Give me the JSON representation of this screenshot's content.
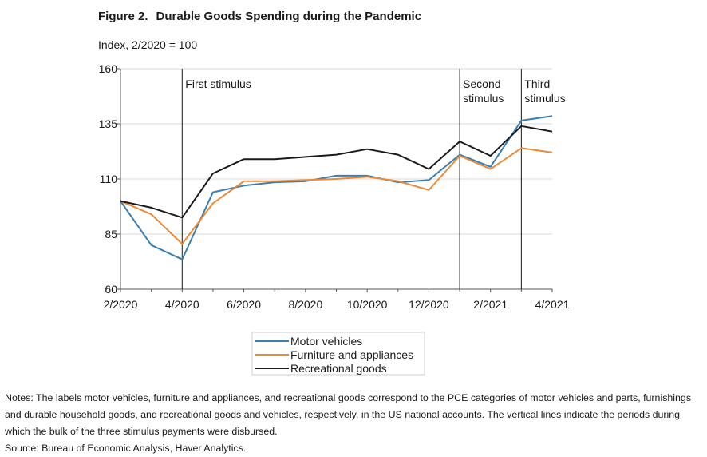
{
  "figure": {
    "number": "Figure 2.",
    "title": "Durable Goods Spending during the Pandemic",
    "ylabel": "Index, 2/2020 = 100"
  },
  "chart_data": {
    "type": "line",
    "title": "Durable Goods Spending during the Pandemic",
    "ylabel": "Index, 2/2020 = 100",
    "xlabel": "",
    "x": [
      "2/2020",
      "3/2020",
      "4/2020",
      "5/2020",
      "6/2020",
      "7/2020",
      "8/2020",
      "9/2020",
      "10/2020",
      "11/2020",
      "12/2020",
      "1/2021",
      "2/2021",
      "3/2021",
      "4/2021"
    ],
    "x_tick_labels": [
      "2/2020",
      "4/2020",
      "6/2020",
      "8/2020",
      "10/2020",
      "12/2020",
      "2/2021",
      "4/2021"
    ],
    "y_ticks": [
      60,
      85,
      110,
      135,
      160
    ],
    "ylim": [
      60,
      160
    ],
    "grid": "horizontal",
    "legend_position": "bottom-center",
    "series": [
      {
        "name": "Motor vehicles",
        "color": "#3a7fb0",
        "values": [
          100,
          80,
          73.5,
          104,
          107,
          108.5,
          109,
          111.5,
          111.5,
          108.5,
          109.5,
          121,
          115.5,
          136.5,
          138.5
        ]
      },
      {
        "name": "Furniture and appliances",
        "color": "#ec8a35",
        "values": [
          100,
          94,
          80.5,
          99,
          109,
          109,
          109.5,
          110,
          111,
          109,
          105,
          120.5,
          114.5,
          124,
          122
        ]
      },
      {
        "name": "Recreational goods",
        "color": "#1a1a1a",
        "values": [
          100,
          97,
          92.5,
          112.5,
          119,
          119,
          120,
          121,
          123.5,
          121,
          114.5,
          127,
          120.5,
          134,
          131.5
        ]
      }
    ],
    "annotations": [
      {
        "at": "4/2020",
        "lines": [
          "First stimulus"
        ]
      },
      {
        "at": "1/2021",
        "lines": [
          "Second",
          "stimulus"
        ]
      },
      {
        "at": "3/2021",
        "lines": [
          "Third",
          "stimulus"
        ]
      }
    ]
  },
  "notes": {
    "text": "Notes: The labels motor vehicles, furniture and appliances, and recreational goods correspond to the PCE categories of motor vehicles and parts, furnishings and durable household goods, and recreational goods and vehicles, respectively, in the US national accounts. The vertical lines indicate the periods during which the bulk of the three stimulus payments were disbursed.",
    "source": "Source: Bureau of Economic Analysis, Haver Analytics."
  }
}
